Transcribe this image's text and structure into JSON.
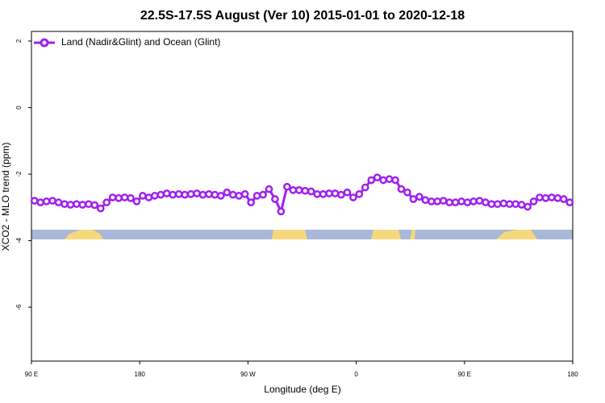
{
  "chart_data": {
    "type": "line",
    "title": "22.5S-17.5S August (Ver 10)   2015-01-01 to 2020-12-18",
    "x_label": "Longitude (deg E)",
    "y_label": "XCO2 - MLO trend (ppm)",
    "x": [
      92.5,
      97.5,
      102.5,
      107.5,
      112.5,
      117.5,
      122.5,
      127.5,
      132.5,
      137.5,
      142.5,
      147.5,
      152.5,
      157.5,
      162.5,
      167.5,
      172.5,
      177.5,
      182.5,
      187.5,
      192.5,
      197.5,
      202.5,
      207.5,
      212.5,
      217.5,
      222.5,
      227.5,
      232.5,
      237.5,
      242.5,
      247.5,
      252.5,
      257.5,
      262.5,
      267.5,
      272.5,
      277.5,
      282.5,
      287.5,
      292.5,
      297.5,
      302.5,
      307.5,
      312.5,
      317.5,
      322.5,
      327.5,
      332.5,
      337.5,
      342.5,
      347.5,
      352.5,
      357.5,
      362.5,
      367.5,
      372.5,
      377.5,
      382.5,
      387.5,
      392.5,
      397.5,
      402.5,
      407.5,
      412.5,
      417.5,
      422.5,
      427.5,
      432.5,
      437.5,
      442.5,
      447.5,
      452.5,
      457.5,
      462.5,
      467.5,
      472.5,
      477.5,
      482.5,
      487.5,
      492.5,
      497.5,
      502.5,
      507.5,
      512.5,
      517.5,
      522.5,
      527.5,
      532.5,
      537.5
    ],
    "series": [
      {
        "name": "Land (Nadir&Glint) and Ocean (Glint)",
        "color": "#a020f0",
        "values": [
          -2.8,
          -2.85,
          -2.82,
          -2.8,
          -2.85,
          -2.9,
          -2.92,
          -2.9,
          -2.92,
          -2.9,
          -2.93,
          -3.03,
          -2.85,
          -2.7,
          -2.72,
          -2.7,
          -2.72,
          -2.82,
          -2.65,
          -2.7,
          -2.65,
          -2.62,
          -2.58,
          -2.62,
          -2.6,
          -2.62,
          -2.6,
          -2.58,
          -2.62,
          -2.6,
          -2.62,
          -2.65,
          -2.55,
          -2.62,
          -2.65,
          -2.6,
          -2.85,
          -2.65,
          -2.62,
          -2.45,
          -2.75,
          -3.12,
          -2.38,
          -2.48,
          -2.48,
          -2.5,
          -2.52,
          -2.6,
          -2.6,
          -2.58,
          -2.58,
          -2.62,
          -2.55,
          -2.7,
          -2.6,
          -2.4,
          -2.18,
          -2.1,
          -2.18,
          -2.15,
          -2.18,
          -2.45,
          -2.55,
          -2.75,
          -2.68,
          -2.78,
          -2.82,
          -2.82,
          -2.8,
          -2.85,
          -2.85,
          -2.82,
          -2.85,
          -2.82,
          -2.8,
          -2.85,
          -2.9,
          -2.9,
          -2.88,
          -2.9,
          -2.9,
          -2.92,
          -2.98,
          -2.82,
          -2.7,
          -2.72,
          -2.7,
          -2.72,
          -2.75,
          -2.85
        ]
      }
    ],
    "xlim": [
      90,
      540
    ],
    "xticks": [
      {
        "value": 90,
        "label": "90 E"
      },
      180,
      {
        "value": 270,
        "label": "90 W"
      },
      {
        "value": 360,
        "label": "0"
      },
      {
        "value": 450,
        "label": "90 E"
      },
      {
        "value": 540,
        "label": "180"
      }
    ],
    "ylim": [
      -7.62,
      2.29
    ],
    "yticks": [
      2,
      0,
      -2,
      -4,
      -6
    ],
    "legend": "top-left"
  }
}
